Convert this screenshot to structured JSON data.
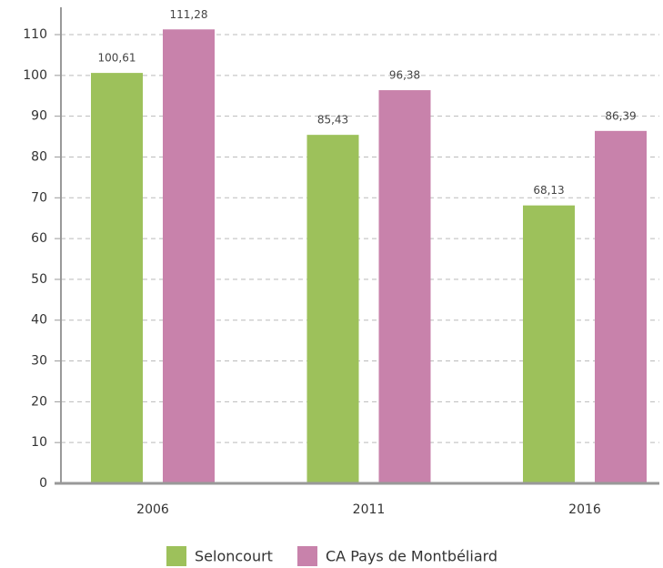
{
  "chart_data": {
    "type": "bar",
    "categories": [
      "2006",
      "2011",
      "2016"
    ],
    "series": [
      {
        "name": "Seloncourt",
        "color": "#9dc15b",
        "values": [
          100.61,
          85.43,
          68.13
        ],
        "value_labels": [
          "100,61",
          "85,43",
          "68,13"
        ]
      },
      {
        "name": "CA Pays de Montbéliard",
        "color": "#c882ab",
        "values": [
          111.28,
          96.38,
          86.39
        ],
        "value_labels": [
          "111,28",
          "96,38",
          "86,39"
        ]
      }
    ],
    "ylim": [
      0,
      116.7
    ],
    "yticks": [
      0,
      10,
      20,
      30,
      40,
      50,
      60,
      70,
      80,
      90,
      100,
      110
    ],
    "grid": true
  }
}
